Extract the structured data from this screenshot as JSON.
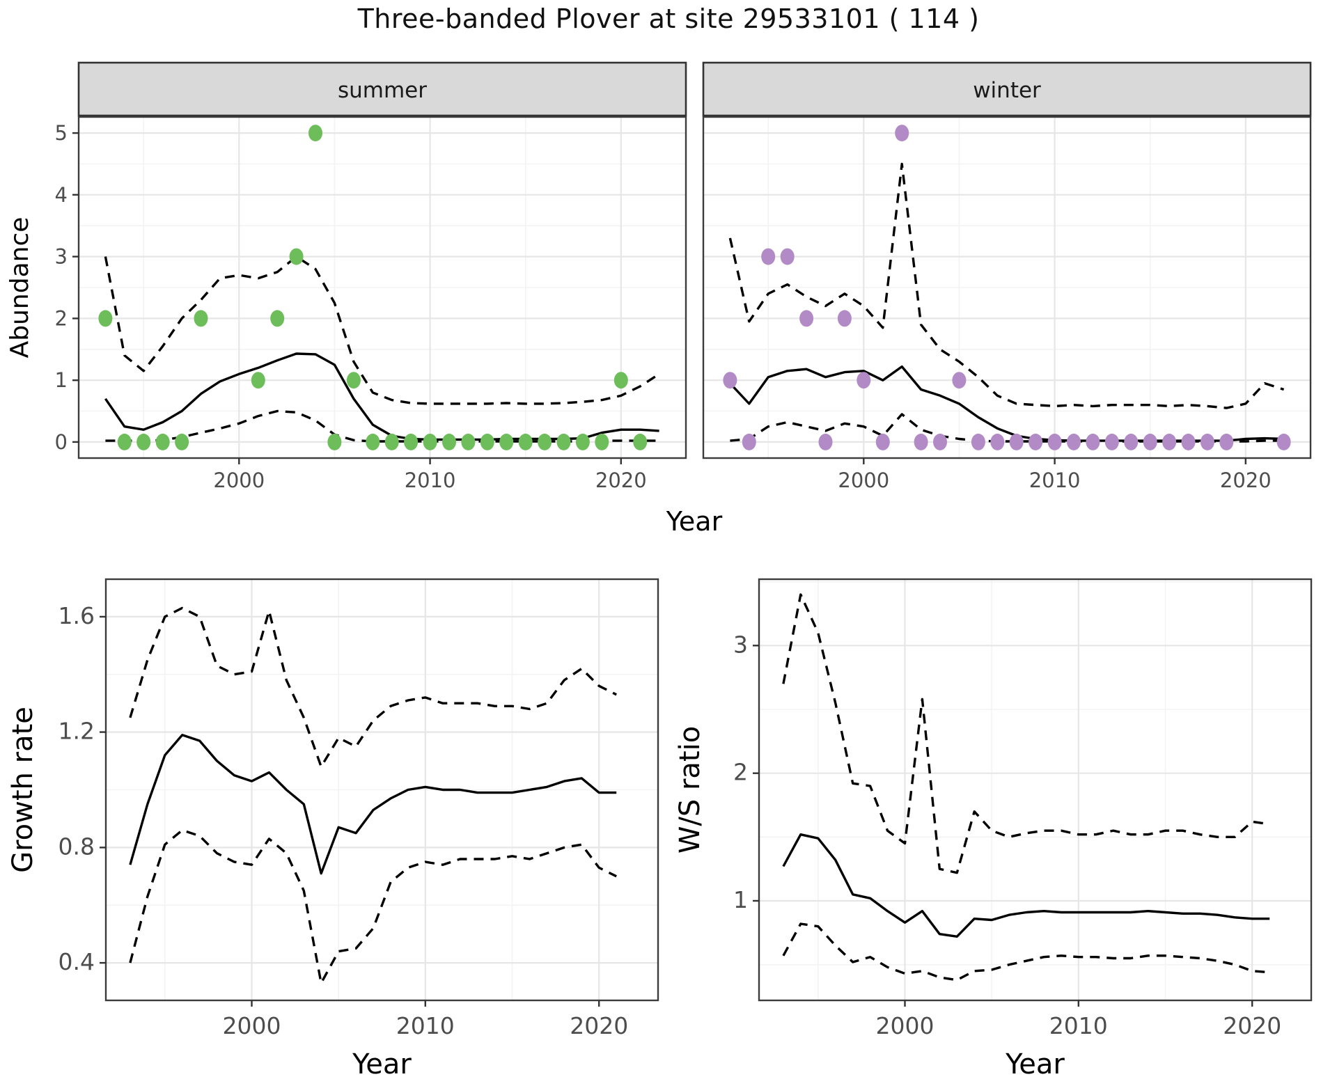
{
  "title": "Three-banded Plover at site 29533101 ( 114 )",
  "colors": {
    "summer_point": "#6dbe5a",
    "winter_point": "#b28bc6",
    "line": "#000000",
    "strip_bg": "#d9d9d9",
    "strip_border": "#333333",
    "panel_border": "#3c3c3c",
    "grid_major": "#e6e6e6",
    "grid_minor": "#f3f3f3",
    "tick_label": "#4d4d4d",
    "axis_title": "#000000",
    "panel_bg": "#ffffff"
  },
  "facet_labels": [
    "summer",
    "winter"
  ],
  "axis_titles": {
    "top_y": "Abundance",
    "top_x": "Year",
    "growth_y": "Growth rate",
    "growth_x": "Year",
    "ws_y": "W/S ratio",
    "ws_x": "Year"
  },
  "chart_data": [
    {
      "type": "line",
      "id": "abundance-summer",
      "facet_label": "summer",
      "xlabel": "Year",
      "ylabel": "Abundance",
      "x": [
        1993,
        1994,
        1995,
        1996,
        1997,
        1998,
        1999,
        2000,
        2001,
        2002,
        2003,
        2004,
        2005,
        2006,
        2007,
        2008,
        2009,
        2010,
        2011,
        2012,
        2013,
        2014,
        2015,
        2016,
        2017,
        2018,
        2019,
        2020,
        2021,
        2022
      ],
      "series": [
        {
          "name": "lower_ci",
          "style": "dashed",
          "values": [
            0.02,
            0.02,
            0.02,
            0.03,
            0.08,
            0.15,
            0.22,
            0.3,
            0.42,
            0.5,
            0.48,
            0.35,
            0.12,
            0.03,
            0.01,
            0.01,
            0.01,
            0.01,
            0.01,
            0.01,
            0.01,
            0.01,
            0.01,
            0.01,
            0.01,
            0.01,
            0.02,
            0.02,
            0.02,
            0.02
          ]
        },
        {
          "name": "upper_ci",
          "style": "dashed",
          "values": [
            3.0,
            1.4,
            1.15,
            1.55,
            2.0,
            2.3,
            2.65,
            2.7,
            2.65,
            2.75,
            3.0,
            2.8,
            2.25,
            1.3,
            0.8,
            0.68,
            0.63,
            0.62,
            0.62,
            0.62,
            0.62,
            0.63,
            0.62,
            0.62,
            0.63,
            0.65,
            0.68,
            0.75,
            0.9,
            1.1
          ]
        },
        {
          "name": "median",
          "style": "solid",
          "values": [
            0.7,
            0.25,
            0.2,
            0.32,
            0.5,
            0.78,
            0.98,
            1.1,
            1.2,
            1.32,
            1.43,
            1.42,
            1.25,
            0.7,
            0.28,
            0.1,
            0.05,
            0.04,
            0.04,
            0.04,
            0.04,
            0.05,
            0.05,
            0.05,
            0.05,
            0.06,
            0.15,
            0.2,
            0.2,
            0.18
          ]
        }
      ],
      "points": {
        "color_key": "summer_point",
        "data": [
          [
            1993,
            2
          ],
          [
            1994,
            0
          ],
          [
            1995,
            0
          ],
          [
            1996,
            0
          ],
          [
            1997,
            0
          ],
          [
            1998,
            2
          ],
          [
            2001,
            1
          ],
          [
            2002,
            2
          ],
          [
            2003,
            3
          ],
          [
            2004,
            5
          ],
          [
            2005,
            0
          ],
          [
            2006,
            1
          ],
          [
            2007,
            0
          ],
          [
            2008,
            0
          ],
          [
            2009,
            0
          ],
          [
            2010,
            0
          ],
          [
            2011,
            0
          ],
          [
            2012,
            0
          ],
          [
            2013,
            0
          ],
          [
            2014,
            0
          ],
          [
            2015,
            0
          ],
          [
            2016,
            0
          ],
          [
            2017,
            0
          ],
          [
            2018,
            0
          ],
          [
            2019,
            0
          ],
          [
            2020,
            1
          ],
          [
            2021,
            0
          ]
        ]
      },
      "xlim": [
        1991.6,
        2023.4
      ],
      "ylim": [
        -0.26,
        5.26
      ],
      "xticks": [
        2000,
        2010,
        2020
      ],
      "xtick_labels": [
        "2000",
        "2010",
        "2020"
      ],
      "xminor": [
        1995,
        2005,
        2015
      ],
      "yticks": [
        0,
        1,
        2,
        3,
        4,
        5
      ],
      "ytick_labels": [
        "0",
        "1",
        "2",
        "3",
        "4",
        "5"
      ],
      "yminor": [
        0.5,
        1.5,
        2.5,
        3.5,
        4.5
      ],
      "grid": true,
      "legend": "none"
    },
    {
      "type": "line",
      "id": "abundance-winter",
      "facet_label": "winter",
      "xlabel": "Year",
      "ylabel": "Abundance",
      "x": [
        1993,
        1994,
        1995,
        1996,
        1997,
        1998,
        1999,
        2000,
        2001,
        2002,
        2003,
        2004,
        2005,
        2006,
        2007,
        2008,
        2009,
        2010,
        2011,
        2012,
        2013,
        2014,
        2015,
        2016,
        2017,
        2018,
        2019,
        2020,
        2021,
        2022
      ],
      "series": [
        {
          "name": "lower_ci",
          "style": "dashed",
          "values": [
            0.02,
            0.05,
            0.25,
            0.32,
            0.25,
            0.18,
            0.3,
            0.25,
            0.1,
            0.45,
            0.2,
            0.1,
            0.05,
            0.02,
            0.01,
            0.01,
            0.01,
            0.01,
            0.01,
            0.01,
            0.01,
            0.01,
            0.01,
            0.01,
            0.01,
            0.01,
            0.01,
            0.01,
            0.02,
            0.02
          ]
        },
        {
          "name": "upper_ci",
          "style": "dashed",
          "values": [
            3.3,
            1.95,
            2.4,
            2.55,
            2.35,
            2.2,
            2.4,
            2.2,
            1.85,
            4.5,
            1.9,
            1.5,
            1.3,
            1.05,
            0.75,
            0.62,
            0.6,
            0.58,
            0.6,
            0.58,
            0.6,
            0.6,
            0.6,
            0.58,
            0.6,
            0.58,
            0.55,
            0.62,
            0.95,
            0.85
          ]
        },
        {
          "name": "median",
          "style": "solid",
          "values": [
            0.95,
            0.62,
            1.05,
            1.15,
            1.18,
            1.05,
            1.13,
            1.15,
            1.0,
            1.22,
            0.85,
            0.75,
            0.62,
            0.4,
            0.22,
            0.1,
            0.05,
            0.03,
            0.02,
            0.02,
            0.02,
            0.02,
            0.02,
            0.02,
            0.02,
            0.02,
            0.02,
            0.05,
            0.06,
            0.05
          ]
        }
      ],
      "points": {
        "color_key": "winter_point",
        "data": [
          [
            1993,
            1
          ],
          [
            1994,
            0
          ],
          [
            1995,
            3
          ],
          [
            1996,
            3
          ],
          [
            1997,
            2
          ],
          [
            1998,
            0
          ],
          [
            1999,
            2
          ],
          [
            2000,
            1
          ],
          [
            2001,
            0
          ],
          [
            2002,
            5
          ],
          [
            2003,
            0
          ],
          [
            2004,
            0
          ],
          [
            2005,
            1
          ],
          [
            2006,
            0
          ],
          [
            2007,
            0
          ],
          [
            2008,
            0
          ],
          [
            2009,
            0
          ],
          [
            2010,
            0
          ],
          [
            2011,
            0
          ],
          [
            2012,
            0
          ],
          [
            2013,
            0
          ],
          [
            2014,
            0
          ],
          [
            2015,
            0
          ],
          [
            2016,
            0
          ],
          [
            2017,
            0
          ],
          [
            2018,
            0
          ],
          [
            2019,
            0
          ],
          [
            2022,
            0
          ]
        ]
      },
      "xlim": [
        1991.6,
        2023.4
      ],
      "ylim": [
        -0.26,
        5.26
      ],
      "xticks": [
        2000,
        2010,
        2020
      ],
      "xtick_labels": [
        "2000",
        "2010",
        "2020"
      ],
      "xminor": [
        1995,
        2005,
        2015
      ],
      "yticks": [
        0,
        1,
        2,
        3,
        4,
        5
      ],
      "ytick_labels": [
        "0",
        "1",
        "2",
        "3",
        "4",
        "5"
      ],
      "yminor": [
        0.5,
        1.5,
        2.5,
        3.5,
        4.5
      ],
      "grid": true,
      "legend": "none"
    },
    {
      "type": "line",
      "id": "growth-rate",
      "facet_label": null,
      "xlabel": "Year",
      "ylabel": "Growth rate",
      "x": [
        1993,
        1994,
        1995,
        1996,
        1997,
        1998,
        1999,
        2000,
        2001,
        2002,
        2003,
        2004,
        2005,
        2006,
        2007,
        2008,
        2009,
        2010,
        2011,
        2012,
        2013,
        2014,
        2015,
        2016,
        2017,
        2018,
        2019,
        2020,
        2021
      ],
      "series": [
        {
          "name": "lower_ci",
          "style": "dashed",
          "values": [
            0.4,
            0.63,
            0.81,
            0.86,
            0.84,
            0.78,
            0.75,
            0.74,
            0.83,
            0.78,
            0.65,
            0.33,
            0.44,
            0.45,
            0.52,
            0.68,
            0.73,
            0.75,
            0.74,
            0.76,
            0.76,
            0.76,
            0.77,
            0.76,
            0.78,
            0.8,
            0.81,
            0.73,
            0.7
          ]
        },
        {
          "name": "upper_ci",
          "style": "dashed",
          "values": [
            1.25,
            1.45,
            1.6,
            1.63,
            1.6,
            1.43,
            1.4,
            1.41,
            1.62,
            1.38,
            1.25,
            1.08,
            1.18,
            1.15,
            1.24,
            1.29,
            1.31,
            1.32,
            1.3,
            1.3,
            1.3,
            1.29,
            1.29,
            1.28,
            1.3,
            1.38,
            1.42,
            1.36,
            1.33
          ]
        },
        {
          "name": "median",
          "style": "solid",
          "values": [
            0.74,
            0.95,
            1.12,
            1.19,
            1.17,
            1.1,
            1.05,
            1.03,
            1.06,
            1.0,
            0.95,
            0.71,
            0.87,
            0.85,
            0.93,
            0.97,
            1.0,
            1.01,
            1.0,
            1.0,
            0.99,
            0.99,
            0.99,
            1.0,
            1.01,
            1.03,
            1.04,
            0.99,
            0.99
          ]
        }
      ],
      "points": null,
      "xlim": [
        1991.6,
        2023.4
      ],
      "ylim": [
        0.27,
        1.73
      ],
      "xticks": [
        2000,
        2010,
        2020
      ],
      "xtick_labels": [
        "2000",
        "2010",
        "2020"
      ],
      "xminor": [
        1995,
        2005,
        2015
      ],
      "yticks": [
        0.4,
        0.8,
        1.2,
        1.6
      ],
      "ytick_labels": [
        "0.4",
        "0.8",
        "1.2",
        "1.6"
      ],
      "yminor": [
        0.6,
        1.0,
        1.4
      ],
      "grid": true,
      "legend": "none"
    },
    {
      "type": "line",
      "id": "ws-ratio",
      "facet_label": null,
      "xlabel": "Year",
      "ylabel": "W/S ratio",
      "x": [
        1993,
        1994,
        1995,
        1996,
        1997,
        1998,
        1999,
        2000,
        2001,
        2002,
        2003,
        2004,
        2005,
        2006,
        2007,
        2008,
        2009,
        2010,
        2011,
        2012,
        2013,
        2014,
        2015,
        2016,
        2017,
        2018,
        2019,
        2020,
        2021
      ],
      "series": [
        {
          "name": "lower_ci",
          "style": "dashed",
          "values": [
            0.57,
            0.82,
            0.8,
            0.65,
            0.52,
            0.56,
            0.48,
            0.43,
            0.45,
            0.4,
            0.38,
            0.45,
            0.46,
            0.5,
            0.53,
            0.56,
            0.57,
            0.56,
            0.56,
            0.55,
            0.55,
            0.57,
            0.57,
            0.56,
            0.55,
            0.53,
            0.5,
            0.45,
            0.44
          ]
        },
        {
          "name": "upper_ci",
          "style": "dashed",
          "values": [
            2.7,
            3.4,
            3.1,
            2.55,
            1.92,
            1.9,
            1.55,
            1.45,
            2.58,
            1.25,
            1.22,
            1.7,
            1.55,
            1.5,
            1.53,
            1.55,
            1.55,
            1.52,
            1.52,
            1.55,
            1.52,
            1.52,
            1.55,
            1.55,
            1.52,
            1.5,
            1.5,
            1.62,
            1.6
          ]
        },
        {
          "name": "median",
          "style": "solid",
          "values": [
            1.27,
            1.52,
            1.49,
            1.32,
            1.05,
            1.02,
            0.92,
            0.83,
            0.92,
            0.74,
            0.72,
            0.86,
            0.85,
            0.89,
            0.91,
            0.92,
            0.91,
            0.91,
            0.91,
            0.91,
            0.91,
            0.92,
            0.91,
            0.9,
            0.9,
            0.89,
            0.87,
            0.86,
            0.86
          ]
        }
      ],
      "points": null,
      "xlim": [
        1991.6,
        2023.4
      ],
      "ylim": [
        0.22,
        3.52
      ],
      "xticks": [
        2000,
        2010,
        2020
      ],
      "xtick_labels": [
        "2000",
        "2010",
        "2020"
      ],
      "xminor": [
        1995,
        2005,
        2015
      ],
      "yticks": [
        1,
        2,
        3
      ],
      "ytick_labels": [
        "1",
        "2",
        "3"
      ],
      "yminor": [
        0.5,
        1.5,
        2.5,
        3.5
      ],
      "grid": true,
      "legend": "none"
    }
  ]
}
